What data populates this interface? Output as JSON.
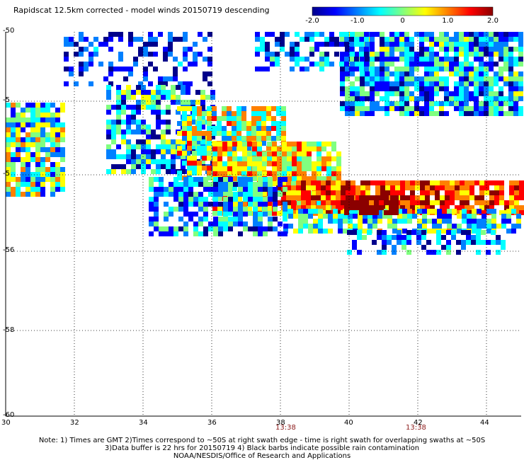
{
  "title": "Rapidscat 12.5km corrected - model winds 20150719 descending",
  "colorbar": {
    "min": -2.0,
    "max": 2.0,
    "tick_labels": [
      "-2.0",
      "-1.0",
      "0",
      "1.0",
      "2.0"
    ],
    "tick_values": [
      -2.0,
      -1.0,
      0,
      1.0,
      2.0
    ],
    "colors": [
      "#00008b",
      "#0000ff",
      "#0080ff",
      "#00ffff",
      "#80ff80",
      "#ffff00",
      "#ff8000",
      "#ff0000",
      "#8b0000"
    ]
  },
  "map": {
    "lon_range": [
      30,
      45
    ],
    "lat_range": [
      -60,
      -50
    ],
    "lon_ticks": [
      "30",
      "32",
      "34",
      "36",
      "38",
      "40",
      "42",
      "44"
    ],
    "lat_ticks": [
      "-50",
      "-5",
      "-5",
      "-56",
      "-58",
      "-60"
    ],
    "gridlines": true
  },
  "times": [
    "13:38",
    "13:38"
  ],
  "notes": [
    "Note: 1) Times are GMT 2)Times correspond to ~50S at right swath edge - time is right swath for overlapping swaths at ~50S",
    "3)Data buffer is 22 hrs for 20150719 4) Black barbs indicate possible rain contamination",
    "NOAA/NESDIS/Office of Research and Applications"
  ]
}
